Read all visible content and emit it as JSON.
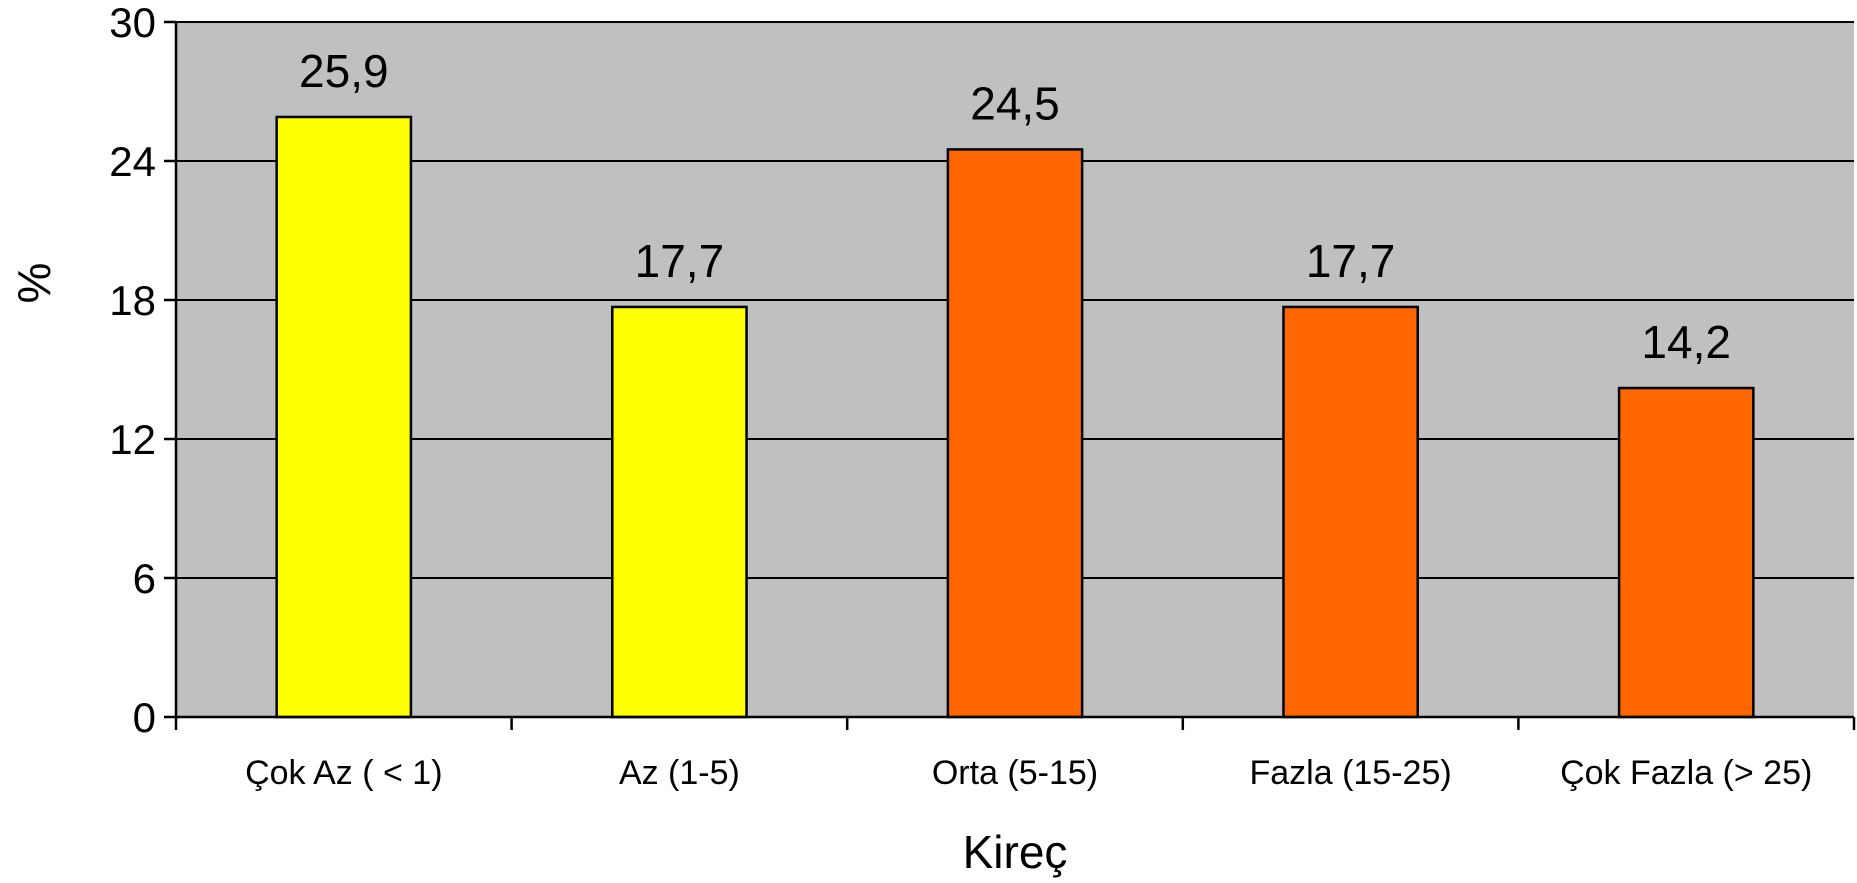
{
  "chart_data": {
    "type": "bar",
    "title": "",
    "xlabel": "Kireç",
    "ylabel": "%",
    "categories": [
      "Çok Az ( < 1)",
      "Az (1-5)",
      "Orta (5-15)",
      "Fazla (15-25)",
      "Çok Fazla (> 25)"
    ],
    "values": [
      25.9,
      17.7,
      24.5,
      17.7,
      14.2
    ],
    "data_labels": [
      "25,9",
      "17,7",
      "24,5",
      "17,7",
      "14,2"
    ],
    "bar_colors": [
      "#ffff00",
      "#ffff00",
      "#ff6600",
      "#ff6600",
      "#ff6600"
    ],
    "ylim": [
      0,
      30
    ],
    "yticks": [
      0,
      6,
      12,
      18,
      24,
      30
    ],
    "ytick_labels": [
      "0",
      "6",
      "12",
      "18",
      "24",
      "30"
    ],
    "grid": true,
    "plot_background": "#c0c0c0",
    "legend": "none"
  }
}
